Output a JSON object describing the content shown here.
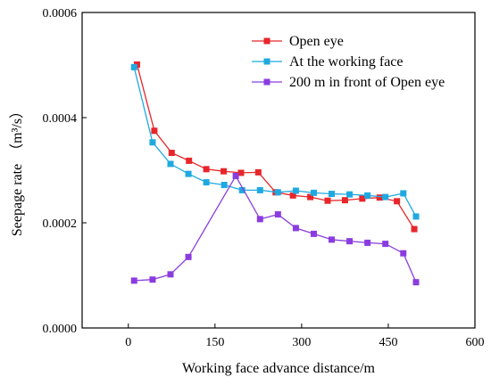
{
  "chart_data": {
    "type": "line",
    "xlabel": "Working face advance distance/m",
    "ylabel": "Seepage rate",
    "ylabel_unit": "（m³/s）",
    "xlim": [
      -80,
      600
    ],
    "ylim": [
      0,
      0.0006
    ],
    "x_ticks": [
      0,
      150,
      300,
      450,
      600
    ],
    "y_ticks": [
      0.0,
      0.0002,
      0.0004,
      0.0006
    ],
    "x_tick_labels": [
      "0",
      "150",
      "300",
      "450",
      "600"
    ],
    "y_tick_labels": [
      "0.0000",
      "0.0002",
      "0.0004",
      "0.0006"
    ],
    "grid": false,
    "legend_position": "top-right",
    "series": [
      {
        "name": "Open eye",
        "color": "#e8262a",
        "marker": "square",
        "x": [
          15,
          45,
          75,
          105,
          135,
          165,
          195,
          225,
          255,
          285,
          315,
          345,
          375,
          405,
          435,
          465,
          495
        ],
        "y": [
          0.000501,
          0.000375,
          0.000333,
          0.000318,
          0.000302,
          0.000298,
          0.000295,
          0.000296,
          0.000258,
          0.000252,
          0.000249,
          0.000242,
          0.000243,
          0.000246,
          0.000248,
          0.000241,
          0.000188
        ]
      },
      {
        "name": "At the working face",
        "color": "#1fa9e1",
        "marker": "square",
        "x": [
          10,
          42,
          73,
          104,
          135,
          166,
          197,
          228,
          259,
          290,
          321,
          352,
          383,
          414,
          445,
          476,
          498
        ],
        "y": [
          0.000496,
          0.000353,
          0.000312,
          0.000293,
          0.000277,
          0.000272,
          0.000262,
          0.000262,
          0.000258,
          0.000261,
          0.000257,
          0.000255,
          0.000254,
          0.000252,
          0.000249,
          0.000256,
          0.000212
        ]
      },
      {
        "name": "200 m in front of Open eye",
        "color": "#8b3ce0",
        "marker": "square",
        "x": [
          10,
          42,
          73,
          104,
          186,
          228,
          259,
          290,
          321,
          352,
          383,
          414,
          445,
          476,
          498
        ],
        "y": [
          9e-05,
          9.2e-05,
          0.000102,
          0.000135,
          0.000289,
          0.000207,
          0.000216,
          0.00019,
          0.000179,
          0.000168,
          0.000165,
          0.000162,
          0.00016,
          0.000142,
          8.7e-05
        ]
      }
    ]
  }
}
